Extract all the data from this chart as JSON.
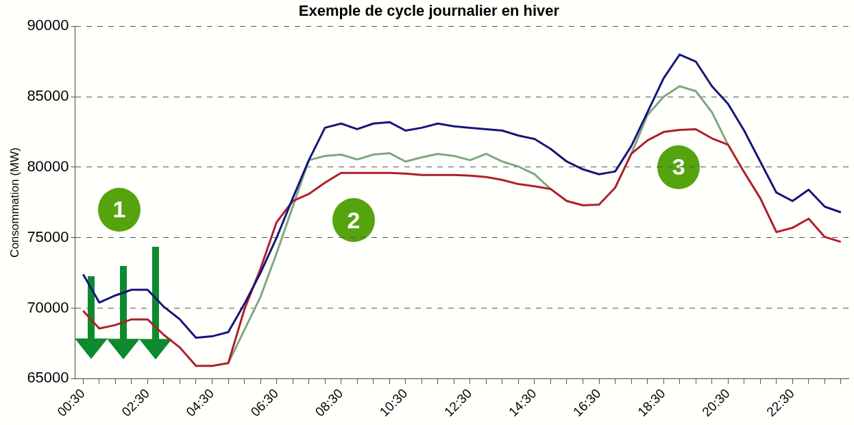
{
  "chart_data": {
    "type": "line",
    "title": "Exemple de cycle journalier en hiver",
    "ylabel": "Consommation (MW)",
    "categories": [
      "00:30",
      null,
      null,
      null,
      "02:30",
      null,
      null,
      null,
      "04:30",
      null,
      null,
      null,
      "06:30",
      null,
      null,
      null,
      "08:30",
      null,
      null,
      null,
      "10:30",
      null,
      null,
      null,
      "12:30",
      null,
      null,
      null,
      "14:30",
      null,
      null,
      null,
      "16:30",
      null,
      null,
      null,
      "18:30",
      null,
      null,
      null,
      "20:30",
      null,
      null,
      null,
      "22:30",
      null,
      null,
      null
    ],
    "series": [
      {
        "color": "#15157a",
        "values": [
          72400,
          70400,
          70900,
          71300,
          71300,
          70100,
          69200,
          67900,
          68000,
          68300,
          70300,
          72500,
          75000,
          77800,
          80500,
          82800,
          83100,
          82700,
          83100,
          83200,
          82600,
          82800,
          83100,
          82900,
          82800,
          82700,
          82600,
          82250,
          82000,
          81300,
          80400,
          79850,
          79500,
          79700,
          81500,
          83900,
          86300,
          88000,
          87500,
          85750,
          84500,
          82600,
          80400,
          78200,
          77600,
          78400,
          77200,
          76800
        ]
      },
      {
        "color": "#b01e2a",
        "values": [
          69800,
          68550,
          68800,
          69200,
          69200,
          68100,
          67200,
          65900,
          65900,
          66100,
          69900,
          72800,
          76100,
          77600,
          78100,
          78900,
          79600,
          79600,
          79600,
          79600,
          79550,
          79450,
          79450,
          79450,
          79400,
          79300,
          79100,
          78800,
          78650,
          78450,
          77600,
          77300,
          77350,
          78550,
          80950,
          81900,
          82500,
          82650,
          82700,
          82050,
          81600,
          79650,
          77800,
          75400,
          75700,
          76350,
          75050,
          74700
        ]
      },
      {
        "color": "#7fa77f",
        "values": [
          null,
          null,
          null,
          null,
          null,
          null,
          null,
          null,
          null,
          66100,
          68450,
          70800,
          73900,
          77200,
          80500,
          80800,
          80900,
          80550,
          80900,
          81000,
          80400,
          80700,
          80950,
          80800,
          80500,
          80950,
          80400,
          80050,
          79500,
          78450,
          null,
          null,
          null,
          null,
          80950,
          83700,
          85000,
          85750,
          85400,
          83900,
          81600,
          null,
          null,
          null,
          null,
          null,
          null,
          null
        ]
      }
    ],
    "ylim": [
      65000,
      90000
    ],
    "yticks": [
      65000,
      70000,
      75000,
      80000,
      85000,
      90000
    ],
    "grid": "y",
    "legend": false,
    "marker": "none",
    "line_style": "solid",
    "annotations": [
      "1",
      "2",
      "3"
    ]
  }
}
